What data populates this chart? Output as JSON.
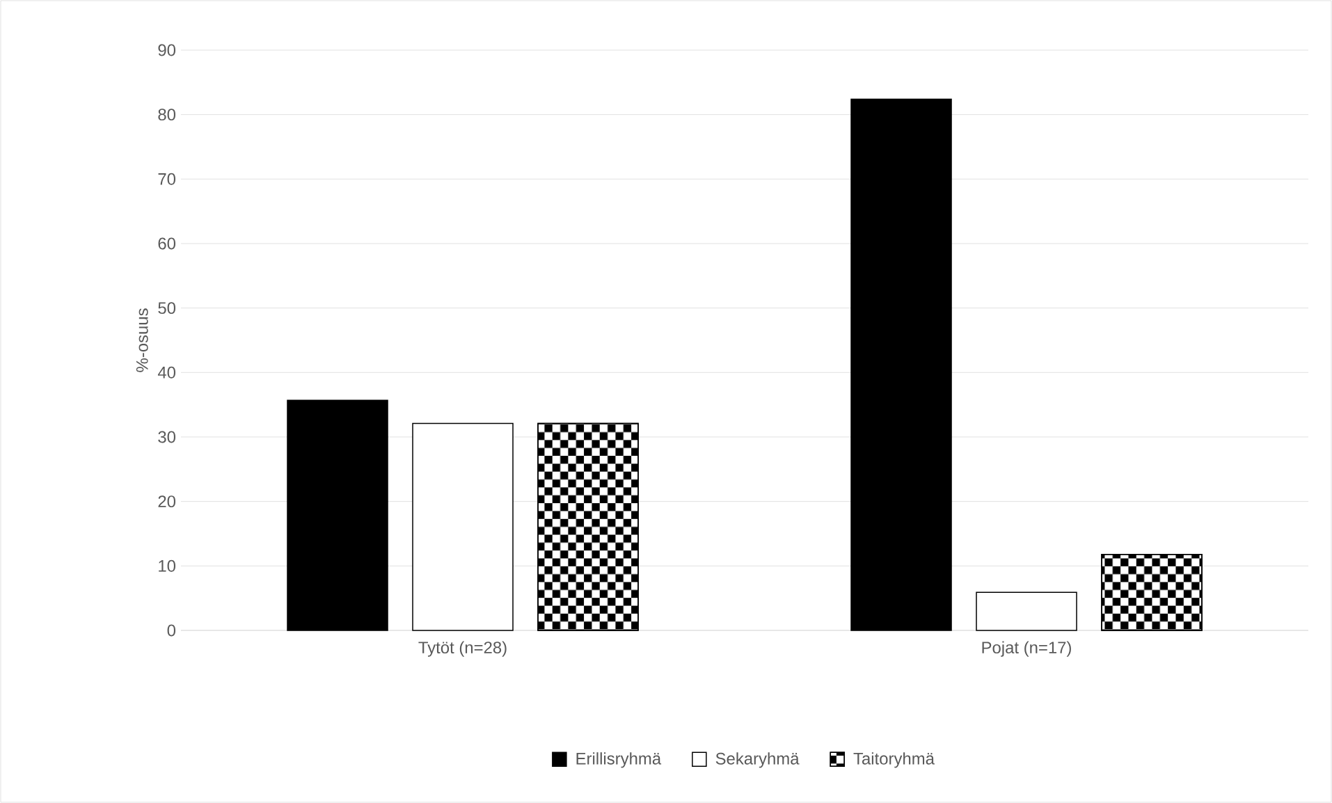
{
  "chart_data": {
    "type": "bar",
    "ylabel": "%-osuus",
    "categories": [
      "Tytöt (n=28)",
      "Pojat (n=17)"
    ],
    "series": [
      {
        "name": "Erillisryhmä",
        "color": "#000000",
        "values": [
          35.7,
          82.4
        ]
      },
      {
        "name": "Sekaryhmä",
        "color": "#ffffff",
        "values": [
          32.1,
          5.9
        ]
      },
      {
        "name": "Taitoryhmä",
        "color": "#000000",
        "values": [
          32.1,
          11.8
        ]
      }
    ],
    "ylim": [
      0,
      90
    ],
    "yticks": [
      0,
      10,
      20,
      30,
      40,
      50,
      60,
      70,
      80,
      90
    ],
    "grid": "y",
    "legend": "bottom"
  }
}
